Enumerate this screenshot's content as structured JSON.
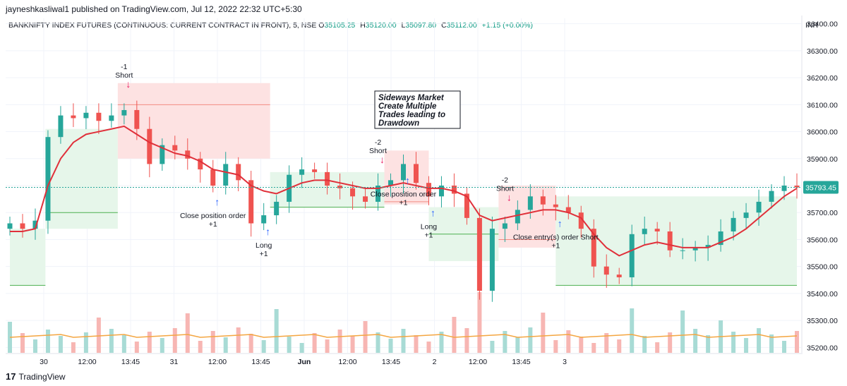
{
  "header": {
    "published_line": "jayneshkasliwal1 published on TradingView.com, Jul 12, 2022 22:32 UTC+5:30"
  },
  "legend": {
    "symbol": "BANKNIFTY INDEX FUTURES (CONTINUOUS: CURRENT CONTRACT IN FRONT), 5, NSE",
    "o_label": "O",
    "o_value": "35105.25",
    "h_label": "H",
    "h_value": "35120.00",
    "l_label": "L",
    "l_value": "35097.80",
    "c_label": "C",
    "c_value": "35112.00",
    "change": "+1.15 (+0.00%)",
    "currency": "INR"
  },
  "colors": {
    "up": "#26a69a",
    "down": "#ef5350",
    "ma": "#e0303a",
    "volume_ma": "#f4a641",
    "short_band_fill": "#fde2e2",
    "short_band_line": "#f28b82",
    "long_band_fill": "#e6f6ea",
    "long_band_line": "#4caf50",
    "last_price_bg": "#26a69a"
  },
  "annotation_box": {
    "lines": [
      "Sideways Market",
      "Create Multiple",
      "Trades leading to",
      "Drawdown"
    ]
  },
  "footer": {
    "brand": "TradingView"
  },
  "chart_data": {
    "type": "candlestick",
    "title": "BANKNIFTY INDEX FUTURES (CONTINUOUS: CURRENT CONTRACT IN FRONT), 5, NSE",
    "ylabel": "INR",
    "ylim": [
      35180,
      36420
    ],
    "y_ticks": [
      "36400.00",
      "36300.00",
      "36200.00",
      "36100.00",
      "36000.00",
      "35900.00",
      "35800.00",
      "35700.00",
      "35600.00",
      "35500.00",
      "35400.00",
      "35300.00",
      "35200.00"
    ],
    "x_tick_labels": [
      "30",
      "12:00",
      "13:45",
      "31",
      "12:00",
      "13:45",
      "Jun",
      "12:00",
      "13:45",
      "2",
      "12:00",
      "13:45",
      "3"
    ],
    "last_price": "35793.45",
    "series": [
      {
        "name": "Close (approx.)",
        "values": [
          35660,
          35640,
          35670,
          35980,
          36060,
          36050,
          36070,
          36040,
          36060,
          36080,
          36010,
          35880,
          35950,
          35930,
          35900,
          35860,
          35800,
          35880,
          35820,
          35660,
          35690,
          35740,
          35840,
          35860,
          35850,
          35800,
          35790,
          35760,
          35740,
          35800,
          35820,
          35880,
          35810,
          35760,
          35800,
          35770,
          35680,
          35410,
          35640,
          35660,
          35710,
          35760,
          35730,
          35720,
          35700,
          35640,
          35500,
          35470,
          35460,
          35620,
          35640,
          35630,
          35560,
          35560,
          35570,
          35580,
          35630,
          35680,
          35700,
          35740,
          35780,
          35800,
          35793
        ]
      },
      {
        "name": "Moving average (approx.)",
        "values": [
          35630,
          35630,
          35640,
          35800,
          35900,
          35960,
          35990,
          36000,
          36010,
          36020,
          35990,
          35960,
          35940,
          35920,
          35910,
          35890,
          35860,
          35850,
          35840,
          35800,
          35780,
          35770,
          35790,
          35810,
          35820,
          35820,
          35810,
          35800,
          35790,
          35790,
          35800,
          35810,
          35800,
          35790,
          35790,
          35780,
          35760,
          35690,
          35670,
          35680,
          35690,
          35700,
          35710,
          35710,
          35700,
          35680,
          35620,
          35570,
          35540,
          35560,
          35580,
          35590,
          35580,
          35570,
          35570,
          35570,
          35590,
          35610,
          35640,
          35680,
          35720,
          35760,
          35790
        ]
      }
    ],
    "markers": [
      {
        "label": "-1",
        "sub": "Short",
        "side": "short",
        "x_index": 9
      },
      {
        "label": "Close position order",
        "sub": "+1",
        "side": "long",
        "x_index": 16
      },
      {
        "label": "Long",
        "sub": "+1",
        "side": "long",
        "x_index": 20
      },
      {
        "label": "-2",
        "sub": "Short",
        "side": "short",
        "x_index": 29
      },
      {
        "label": "Close position order",
        "sub": "+1",
        "side": "long",
        "x_index": 31
      },
      {
        "label": "Long",
        "sub": "+1",
        "side": "long",
        "x_index": 33
      },
      {
        "label": "-2",
        "sub": "Short",
        "side": "short",
        "x_index": 39
      },
      {
        "label": "Close entry(s) order Short",
        "sub": "+1",
        "side": "long",
        "x_index": 43
      }
    ],
    "grid": true
  }
}
